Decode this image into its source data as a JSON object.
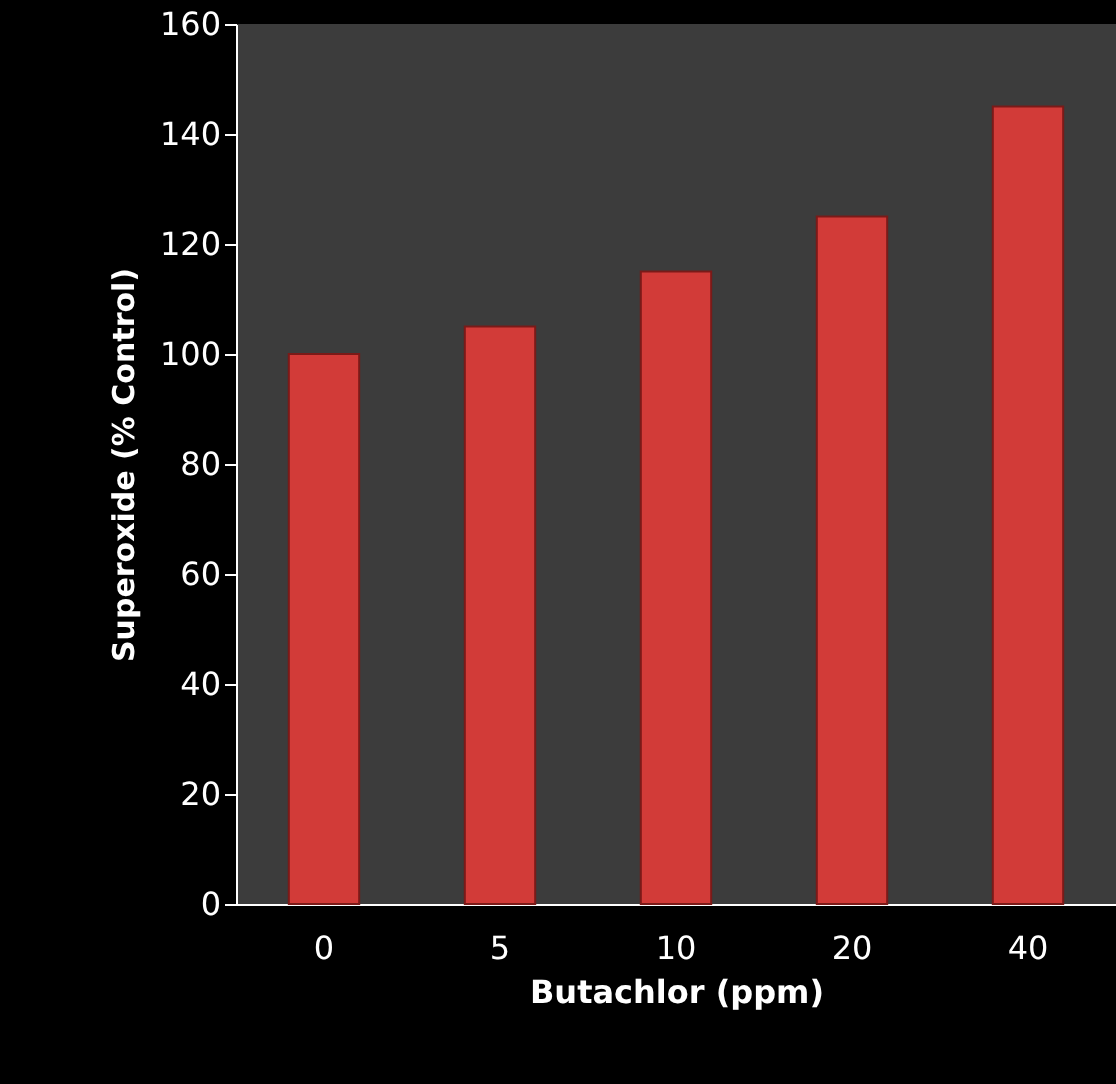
{
  "chart_data": {
    "type": "bar",
    "xlabel": "Butachlor (ppm)",
    "ylabel": "Superoxide (% Control)",
    "categories": [
      "0",
      "5",
      "10",
      "20",
      "40"
    ],
    "values": [
      100,
      105,
      115,
      125,
      145
    ],
    "color": "#d23b38",
    "ylim": [
      0,
      160
    ],
    "yticks": [
      0,
      20,
      40,
      60,
      80,
      100,
      120,
      140,
      160
    ],
    "grid": false
  }
}
